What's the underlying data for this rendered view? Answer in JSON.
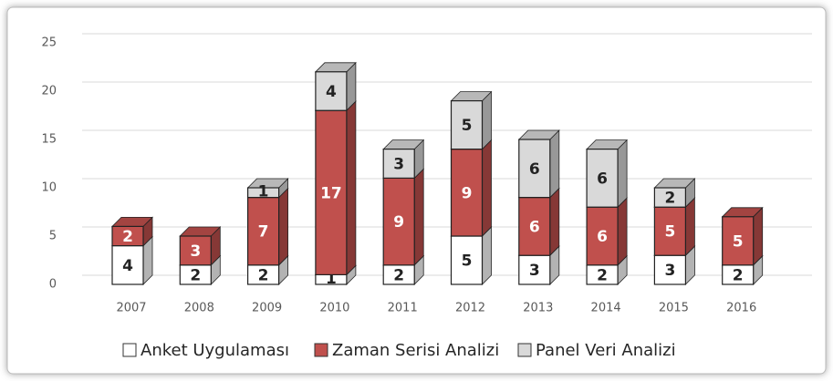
{
  "chart_data": {
    "type": "bar",
    "stacked": true,
    "categories": [
      "2007",
      "2008",
      "2009",
      "2010",
      "2011",
      "2012",
      "2013",
      "2014",
      "2015",
      "2016"
    ],
    "series": [
      {
        "name": "Anket Uygulaması",
        "color": "#ffffff",
        "values": [
          4,
          2,
          2,
          1,
          2,
          5,
          3,
          2,
          3,
          2
        ]
      },
      {
        "name": "Zaman Serisi Analizi",
        "color": "#c0504d",
        "values": [
          2,
          3,
          7,
          17,
          9,
          9,
          6,
          6,
          5,
          5
        ]
      },
      {
        "name": "Panel Veri Analizi",
        "color": "#d9d9d9",
        "values": [
          0,
          0,
          1,
          4,
          3,
          5,
          6,
          6,
          2,
          0
        ]
      }
    ],
    "ylim": [
      0,
      25
    ],
    "yticks": [
      0,
      5,
      10,
      15,
      20,
      25
    ],
    "grid": true,
    "legend": "bottom"
  }
}
